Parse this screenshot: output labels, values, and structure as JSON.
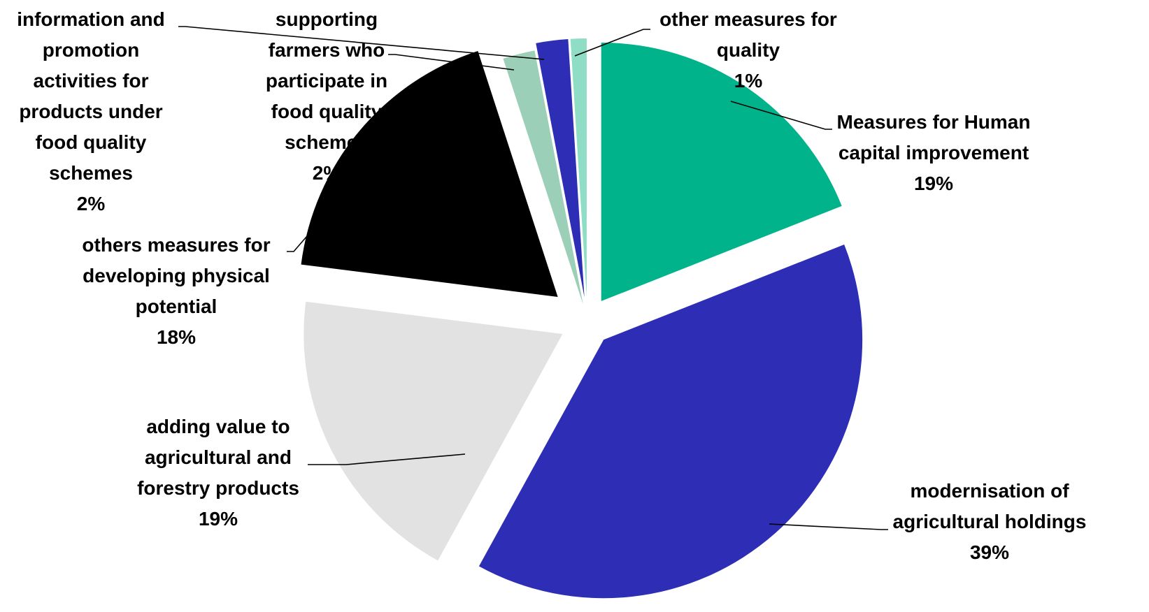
{
  "chart_data": {
    "type": "pie",
    "title": "",
    "exploded": true,
    "start": "12 o'clock, clockwise",
    "slices": [
      {
        "label": [
          "Measures for Human",
          "capital improvement"
        ],
        "pct_label": "19%",
        "value": 19,
        "color": "#00B38A"
      },
      {
        "label": [
          "modernisation of",
          "agricultural holdings"
        ],
        "pct_label": "39%",
        "value": 39,
        "color": "#2E2DB5"
      },
      {
        "label": [
          "adding value to",
          "agricultural and",
          "forestry products"
        ],
        "pct_label": "19%",
        "value": 19,
        "color": "#E2E2E2"
      },
      {
        "label": [
          "others  measures for",
          "developing physical",
          "potential"
        ],
        "pct_label": "18%",
        "value": 18,
        "color": "#000000"
      },
      {
        "label": [
          "information and",
          "promotion",
          "activities for",
          "products under",
          "food quality",
          "schemes"
        ],
        "pct_label": "2%",
        "value": 2,
        "color": "#9CCFB8"
      },
      {
        "label": [
          "supporting",
          "farmers who",
          "participate in",
          "food quality",
          "schemes"
        ],
        "pct_label": "2%",
        "value": 2,
        "color": "#2E2DB5"
      },
      {
        "label": [
          "other measures for",
          "quality"
        ],
        "pct_label": "1%",
        "value": 1,
        "color": "#8EDDC4"
      }
    ]
  }
}
